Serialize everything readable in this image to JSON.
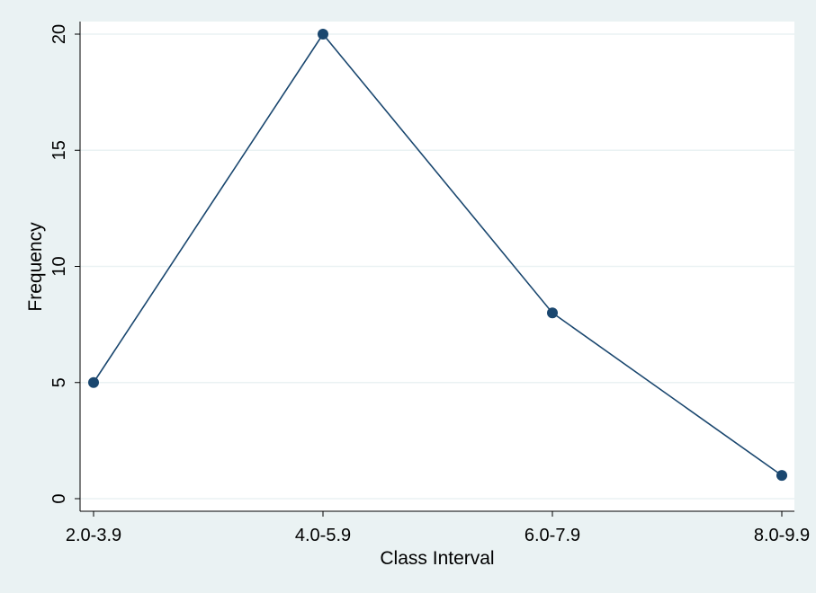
{
  "chart_data": {
    "type": "line",
    "categories": [
      "2.0-3.9",
      "4.0-5.9",
      "6.0-7.9",
      "8.0-9.9"
    ],
    "series": [
      {
        "values": [
          5,
          20,
          8,
          1
        ]
      }
    ],
    "xlabel": "Class Interval",
    "ylabel": "Frequency",
    "ylim": [
      0,
      20
    ],
    "yticks": [
      0,
      5,
      10,
      15,
      20
    ],
    "grid": true,
    "markers": true,
    "colors": {
      "background": "#eaf2f3",
      "plot_area": "#ffffff",
      "line": "#1a476f",
      "grid": "#eaf2f3",
      "axis": "#000000"
    }
  }
}
